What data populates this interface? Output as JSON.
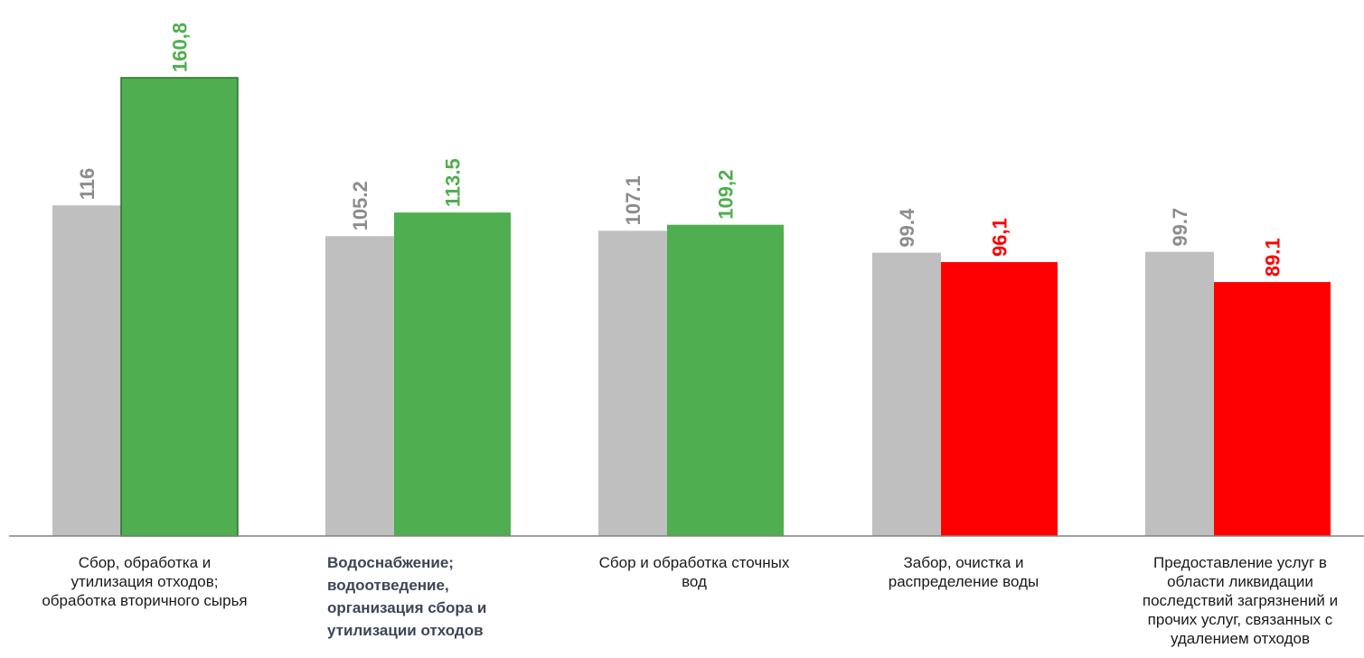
{
  "chart_data": {
    "type": "bar",
    "categories": [
      "Сбор, обработка и\nутилизация отходов;\nобработка вторичного сырья",
      "Водоснабжение;\nводоотведение,\nорганизация сбора и\nутилизации отходов",
      "Сбор и обработка сточных\nвод",
      "Забор, очистка и\nраспределение воды",
      "Предоставление услуг в\nобласти ликвидации\nпоследствий загрязнений и\nпрочих услуг, связанных с\nудалением отходов"
    ],
    "series": [
      {
        "values": [
          116,
          105.2,
          107.1,
          99.4,
          99.7
        ],
        "labels": [
          "116",
          "105.2",
          "107.1",
          "99.4",
          "99.7"
        ],
        "color": "#bfbfbf",
        "label_color": "#8c8c8c"
      },
      {
        "values": [
          160.8,
          113.5,
          109.2,
          96.1,
          89.1
        ],
        "labels": [
          "160,8",
          "113.5",
          "109,2",
          "96,1",
          "89.1"
        ],
        "colors": [
          "#4fae4f",
          "#4fae4f",
          "#4fae4f",
          "#ff0000",
          "#ff0000"
        ]
      }
    ],
    "bold_category_index": 1,
    "axis_color": "#808080",
    "ylim": [
      0,
      170
    ],
    "grid": false,
    "legend": "none"
  }
}
